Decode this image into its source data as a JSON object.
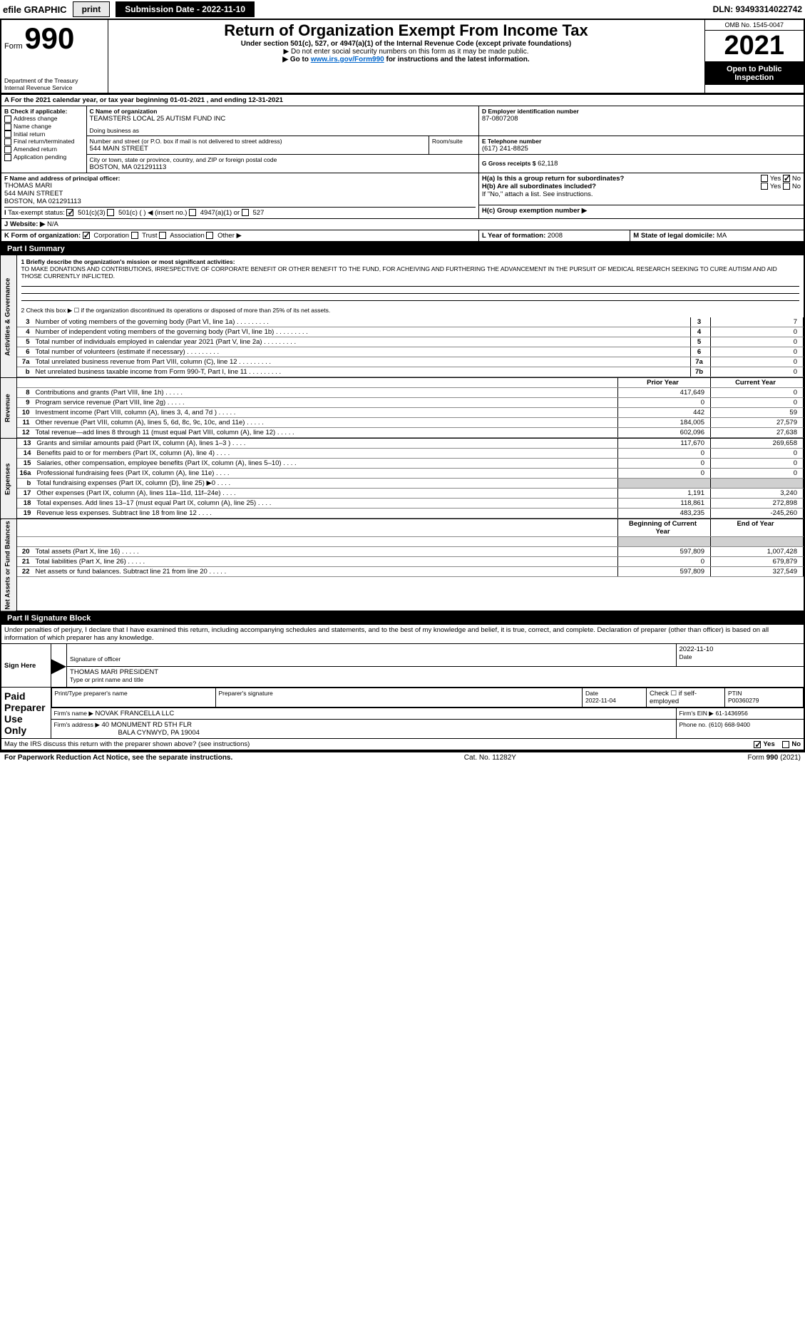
{
  "topbar": {
    "efile": "efile GRAPHIC",
    "print": "print",
    "submission": "Submission Date - 2022-11-10",
    "dln": "DLN: 93493314022742"
  },
  "header": {
    "form_label": "Form",
    "form_number": "990",
    "title": "Return of Organization Exempt From Income Tax",
    "subtitle": "Under section 501(c), 527, or 4947(a)(1) of the Internal Revenue Code (except private foundations)",
    "note1": "▶ Do not enter social security numbers on this form as it may be made public.",
    "note2_pre": "▶ Go to ",
    "note2_link": "www.irs.gov/Form990",
    "note2_post": " for instructions and the latest information.",
    "dept": "Department of the Treasury",
    "irs": "Internal Revenue Service",
    "omb": "OMB No. 1545-0047",
    "year": "2021",
    "open": "Open to Public Inspection"
  },
  "sectionA": {
    "line": "A For the 2021 calendar year, or tax year beginning 01-01-2021    , and ending 12-31-2021",
    "b_label": "B Check if applicable:",
    "checks": [
      "Address change",
      "Name change",
      "Initial return",
      "Final return/terminated",
      "Amended return",
      "Application pending"
    ],
    "c_label": "C Name of organization",
    "org_name": "TEAMSTERS LOCAL 25 AUTISM FUND INC",
    "dba": "Doing business as",
    "street_label": "Number and street (or P.O. box if mail is not delivered to street address)",
    "room": "Room/suite",
    "street": "544 MAIN STREET",
    "city_label": "City or town, state or province, country, and ZIP or foreign postal code",
    "city": "BOSTON, MA  021291113",
    "d_label": "D Employer identification number",
    "ein": "87-0807208",
    "e_label": "E Telephone number",
    "phone": "(617) 241-8825",
    "g_label": "G Gross receipts $",
    "g_val": "62,118",
    "f_label": "F Name and address of principal officer:",
    "officer": "THOMAS MARI",
    "officer_addr1": "544 MAIN STREET",
    "officer_addr2": "BOSTON, MA  021291113",
    "h_a": "H(a)  Is this a group return for subordinates?",
    "h_b": "H(b)  Are all subordinates included?",
    "h_b_note": "If \"No,\" attach a list. See instructions.",
    "h_c": "H(c)  Group exemption number ▶",
    "yes": "Yes",
    "no": "No",
    "i_label": "Tax-exempt status:",
    "i_opts": [
      "501(c)(3)",
      "501(c) (  ) ◀ (insert no.)",
      "4947(a)(1) or",
      "527"
    ],
    "j_label": "Website: ▶",
    "j_val": "N/A",
    "k_label": "K Form of organization:",
    "k_opts": [
      "Corporation",
      "Trust",
      "Association",
      "Other ▶"
    ],
    "l_label": "L Year of formation: ",
    "l_val": "2008",
    "m_label": "M State of legal domicile: ",
    "m_val": "MA"
  },
  "part1": {
    "header": "Part I      Summary",
    "q1": "1  Briefly describe the organization's mission or most significant activities:",
    "mission": "TO MAKE DONATIONS AND CONTRIBUTIONS, IRRESPECTIVE OF CORPORATE BENEFIT OR OTHER BENEFIT TO THE FUND, FOR ACHEIVING AND FURTHERING THE ADVANCEMENT IN THE PURSUIT OF MEDICAL RESEARCH SEEKING TO CURE AUTISM AND AID THOSE CURRENTLY INFLICTED.",
    "q2": "2  Check this box ▶ ☐ if the organization discontinued its operations or disposed of more than 25% of its net assets.",
    "rows_gov": [
      {
        "n": "3",
        "t": "Number of voting members of the governing body (Part VI, line 1a)",
        "box": "3",
        "v": "7"
      },
      {
        "n": "4",
        "t": "Number of independent voting members of the governing body (Part VI, line 1b)",
        "box": "4",
        "v": "0"
      },
      {
        "n": "5",
        "t": "Total number of individuals employed in calendar year 2021 (Part V, line 2a)",
        "box": "5",
        "v": "0"
      },
      {
        "n": "6",
        "t": "Total number of volunteers (estimate if necessary)",
        "box": "6",
        "v": "0"
      },
      {
        "n": "7a",
        "t": "Total unrelated business revenue from Part VIII, column (C), line 12",
        "box": "7a",
        "v": "0"
      },
      {
        "n": "b",
        "t": "Net unrelated business taxable income from Form 990-T, Part I, line 11",
        "box": "7b",
        "v": "0"
      }
    ],
    "col_prior": "Prior Year",
    "col_current": "Current Year",
    "rows_rev": [
      {
        "n": "8",
        "t": "Contributions and grants (Part VIII, line 1h)",
        "p": "417,649",
        "c": "0"
      },
      {
        "n": "9",
        "t": "Program service revenue (Part VIII, line 2g)",
        "p": "0",
        "c": "0"
      },
      {
        "n": "10",
        "t": "Investment income (Part VIII, column (A), lines 3, 4, and 7d )",
        "p": "442",
        "c": "59"
      },
      {
        "n": "11",
        "t": "Other revenue (Part VIII, column (A), lines 5, 6d, 8c, 9c, 10c, and 11e)",
        "p": "184,005",
        "c": "27,579"
      },
      {
        "n": "12",
        "t": "Total revenue—add lines 8 through 11 (must equal Part VIII, column (A), line 12)",
        "p": "602,096",
        "c": "27,638"
      }
    ],
    "rows_exp": [
      {
        "n": "13",
        "t": "Grants and similar amounts paid (Part IX, column (A), lines 1–3 )",
        "p": "117,670",
        "c": "269,658"
      },
      {
        "n": "14",
        "t": "Benefits paid to or for members (Part IX, column (A), line 4)",
        "p": "0",
        "c": "0"
      },
      {
        "n": "15",
        "t": "Salaries, other compensation, employee benefits (Part IX, column (A), lines 5–10)",
        "p": "0",
        "c": "0"
      },
      {
        "n": "16a",
        "t": "Professional fundraising fees (Part IX, column (A), line 11e)",
        "p": "0",
        "c": "0"
      },
      {
        "n": "b",
        "t": "Total fundraising expenses (Part IX, column (D), line 25) ▶0",
        "p": "",
        "c": "",
        "shaded": true
      },
      {
        "n": "17",
        "t": "Other expenses (Part IX, column (A), lines 11a–11d, 11f–24e)",
        "p": "1,191",
        "c": "3,240"
      },
      {
        "n": "18",
        "t": "Total expenses. Add lines 13–17 (must equal Part IX, column (A), line 25)",
        "p": "118,861",
        "c": "272,898"
      },
      {
        "n": "19",
        "t": "Revenue less expenses. Subtract line 18 from line 12",
        "p": "483,235",
        "c": "-245,260"
      }
    ],
    "col_begin": "Beginning of Current Year",
    "col_end": "End of Year",
    "rows_net": [
      {
        "n": "20",
        "t": "Total assets (Part X, line 16)",
        "p": "597,809",
        "c": "1,007,428"
      },
      {
        "n": "21",
        "t": "Total liabilities (Part X, line 26)",
        "p": "0",
        "c": "679,879"
      },
      {
        "n": "22",
        "t": "Net assets or fund balances. Subtract line 21 from line 20",
        "p": "597,809",
        "c": "327,549"
      }
    ],
    "vlabels": {
      "gov": "Activities & Governance",
      "rev": "Revenue",
      "exp": "Expenses",
      "net": "Net Assets or Fund Balances"
    }
  },
  "part2": {
    "header": "Part II     Signature Block",
    "decl": "Under penalties of perjury, I declare that I have examined this return, including accompanying schedules and statements, and to the best of my knowledge and belief, it is true, correct, and complete. Declaration of preparer (other than officer) is based on all information of which preparer has any knowledge.",
    "sign_here": "Sign Here",
    "sig_officer": "Signature of officer",
    "date": "Date",
    "sig_date": "2022-11-10",
    "name_title": "THOMAS MARI PRESIDENT",
    "type_name": "Type or print name and title",
    "paid": "Paid Preparer Use Only",
    "prep_name_label": "Print/Type preparer's name",
    "prep_sig_label": "Preparer's signature",
    "prep_date": "2022-11-04",
    "check_self": "Check ☐ if self-employed",
    "ptin_label": "PTIN",
    "ptin": "P00360279",
    "firm_name_label": "Firm's name    ▶",
    "firm_name": "NOVAK FRANCELLA LLC",
    "firm_ein_label": "Firm's EIN ▶",
    "firm_ein": "61-1436956",
    "firm_addr_label": "Firm's address ▶",
    "firm_addr1": "40 MONUMENT RD 5TH FLR",
    "firm_addr2": "BALA CYNWYD, PA  19004",
    "phone_label": "Phone no.",
    "phone": "(610) 668-9400",
    "discuss": "May the IRS discuss this return with the preparer shown above? (see instructions)",
    "discuss_yes": "Yes",
    "discuss_no": "No"
  },
  "footer": {
    "left": "For Paperwork Reduction Act Notice, see the separate instructions.",
    "mid": "Cat. No. 11282Y",
    "right": "Form 990 (2021)"
  },
  "colors": {
    "link": "#0066cc",
    "black": "#000000",
    "shade": "#d0d0d0"
  }
}
